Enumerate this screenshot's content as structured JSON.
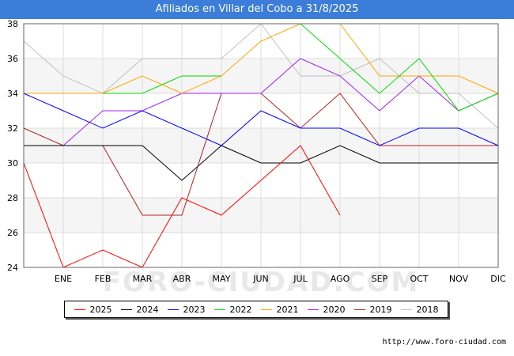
{
  "title": "Afiliados en Villar del Cobo a 31/8/2025",
  "url": "http://www.foro-ciudad.com",
  "watermark": "FORO-CIUDAD.COM",
  "chart_data": {
    "type": "line",
    "title": "Afiliados en Villar del Cobo a 31/8/2025",
    "xlabel": "",
    "ylabel": "",
    "ylim": [
      24,
      38
    ],
    "yticks": [
      24,
      26,
      28,
      30,
      32,
      34,
      36,
      38
    ],
    "grid": true,
    "legend_position": "bottom",
    "categories": [
      "",
      "ENE",
      "FEB",
      "MAR",
      "ABR",
      "MAY",
      "JUN",
      "JUL",
      "AGO",
      "SEP",
      "OCT",
      "NOV",
      "DIC"
    ],
    "series": [
      {
        "name": "2025",
        "color": "#ff0000",
        "values": [
          30,
          24,
          25,
          24,
          28,
          27,
          29,
          31,
          27,
          null,
          null,
          null,
          null
        ]
      },
      {
        "name": "2024",
        "color": "#000000",
        "values": [
          31,
          31,
          31,
          31,
          29,
          31,
          30,
          30,
          31,
          30,
          30,
          30,
          30
        ]
      },
      {
        "name": "2023",
        "color": "#0000ff",
        "values": [
          34,
          33,
          32,
          33,
          32,
          31,
          33,
          32,
          32,
          31,
          32,
          32,
          31
        ]
      },
      {
        "name": "2022",
        "color": "#00dd00",
        "values": [
          null,
          null,
          34,
          34,
          35,
          35,
          null,
          38,
          36,
          34,
          36,
          33,
          34
        ]
      },
      {
        "name": "2021",
        "color": "#ffa500",
        "values": [
          34,
          34,
          34,
          35,
          34,
          35,
          37,
          38,
          38,
          35,
          35,
          35,
          34
        ]
      },
      {
        "name": "2020",
        "color": "#a020f0",
        "values": [
          31,
          31,
          33,
          33,
          34,
          34,
          34,
          36,
          35,
          33,
          35,
          33,
          34
        ]
      },
      {
        "name": "2019",
        "color": "#b22222",
        "values": [
          32,
          31,
          31,
          27,
          27,
          34,
          34,
          32,
          34,
          31,
          31,
          31,
          31
        ]
      },
      {
        "name": "2018",
        "color": "#c0c0c0",
        "values": [
          37,
          35,
          34,
          36,
          36,
          36,
          38,
          35,
          35,
          36,
          34,
          34,
          32
        ]
      }
    ]
  }
}
